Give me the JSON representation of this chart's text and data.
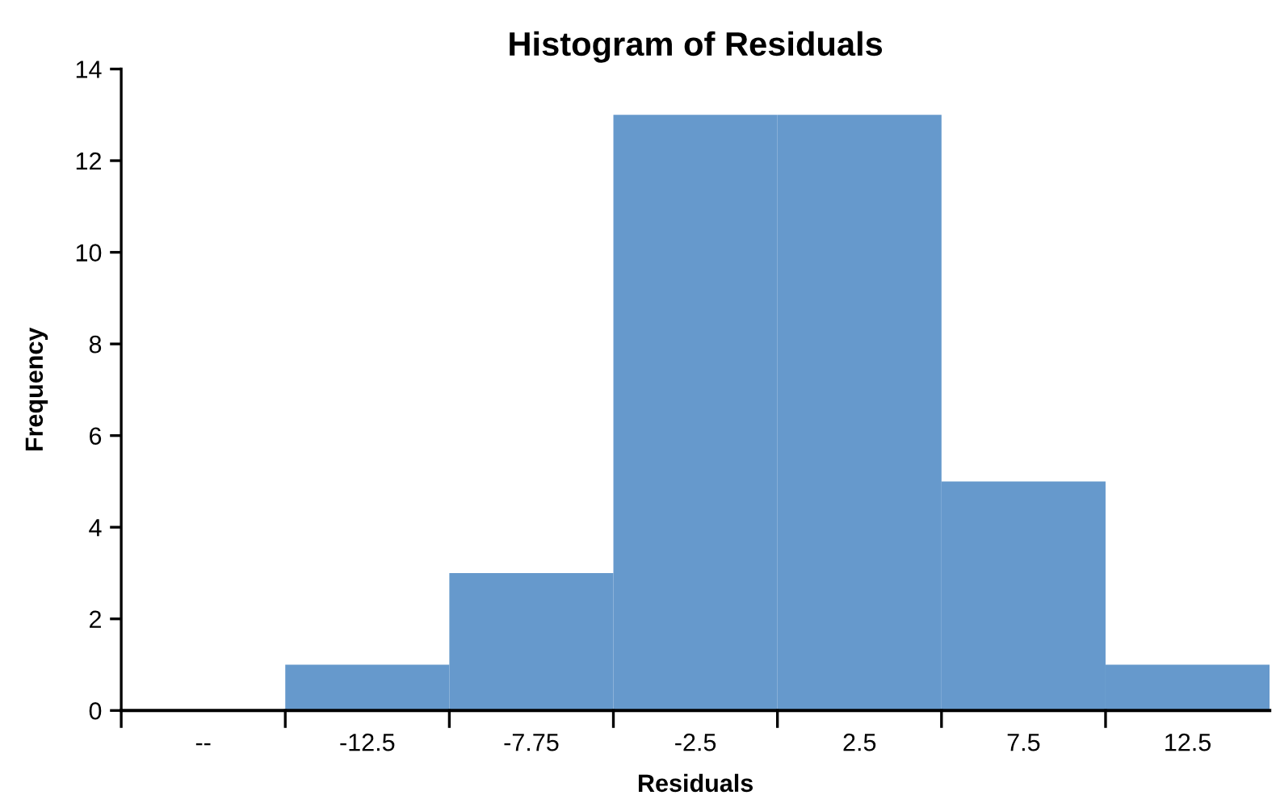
{
  "chart_data": {
    "type": "bar",
    "title": "Histogram of Residuals",
    "xlabel": "Residuals",
    "ylabel": "Frequency",
    "categories": [
      "--",
      "-12.5",
      "-7.75",
      "-2.5",
      "2.5",
      "7.5",
      "12.5"
    ],
    "values": [
      null,
      1,
      3,
      13,
      13,
      5,
      1
    ],
    "color": "#6699cc",
    "ylim": [
      0,
      14
    ],
    "yticks": [
      0,
      2,
      4,
      6,
      8,
      10,
      12,
      14
    ],
    "grid": false,
    "legend": false
  }
}
